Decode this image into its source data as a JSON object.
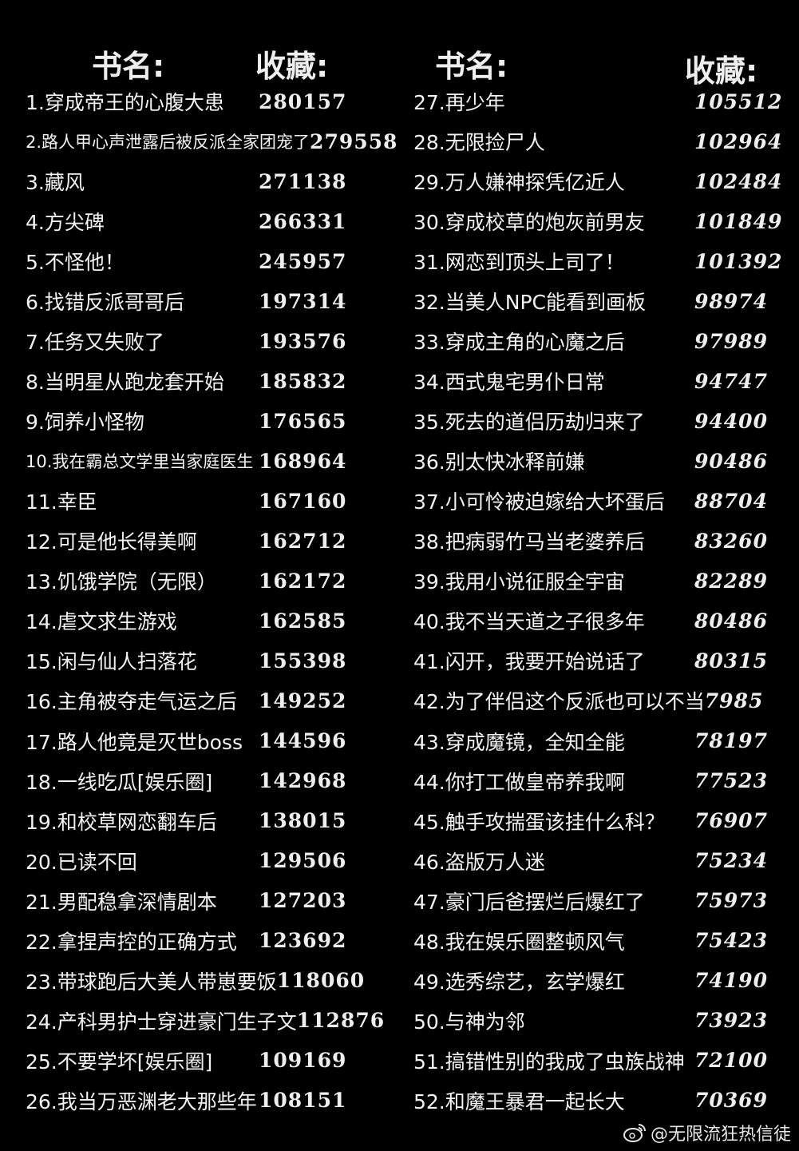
{
  "headers": {
    "left_title": "书名:",
    "left_count": "收藏:",
    "right_title": "书名:",
    "right_count": "收藏:"
  },
  "left_books": [
    {
      "title": "1.穿成帝王的心腹大患",
      "count": "280157"
    },
    {
      "title": "2.路人甲心声泄露后被反派全家团宠了",
      "count": "279558",
      "small": true
    },
    {
      "title": "3.藏风",
      "count": "271138"
    },
    {
      "title": "4.方尖碑",
      "count": "266331"
    },
    {
      "title": "5.不怪他！",
      "count": "245957"
    },
    {
      "title": "6.找错反派哥哥后",
      "count": "197314"
    },
    {
      "title": "7.任务又失败了",
      "count": "193576"
    },
    {
      "title": "8.当明星从跑龙套开始",
      "count": "185832"
    },
    {
      "title": "9.饲养小怪物",
      "count": "176565"
    },
    {
      "title": "10.我在霸总文学里当家庭医生",
      "count": "168964",
      "small": true
    },
    {
      "title": "11.幸臣",
      "count": "167160"
    },
    {
      "title": "12.可是他长得美啊",
      "count": "162712"
    },
    {
      "title": "13.饥饿学院（无限）",
      "count": "162172"
    },
    {
      "title": "14.虐文求生游戏",
      "count": "162585"
    },
    {
      "title": "15.闲与仙人扫落花",
      "count": "155398"
    },
    {
      "title": "16.主角被夺走气运之后",
      "count": "149252"
    },
    {
      "title": "17.路人他竟是灭世boss",
      "count": "144596"
    },
    {
      "title": "18.一线吃瓜[娱乐圈]",
      "count": "142968"
    },
    {
      "title": "19.和校草网恋翻车后",
      "count": "138015"
    },
    {
      "title": "20.已读不回",
      "count": "129506"
    },
    {
      "title": "21.男配稳拿深情剧本",
      "count": "127203"
    },
    {
      "title": "22.拿捏声控的正确方式",
      "count": "123692"
    },
    {
      "title": "23.带球跑后大美人带崽要饭",
      "count": "118060"
    },
    {
      "title": "24.产科男护士穿进豪门生子文",
      "count": "112876"
    },
    {
      "title": "25.不要学坏[娱乐圈]",
      "count": "109169"
    },
    {
      "title": "26.我当万恶渊老大那些年",
      "count": "108151"
    }
  ],
  "right_books": [
    {
      "title": "27.再少年",
      "count": "105512"
    },
    {
      "title": "28.无限捡尸人",
      "count": "102964"
    },
    {
      "title": "29.万人嫌神探凭亿近人",
      "count": "102484"
    },
    {
      "title": "30.穿成校草的炮灰前男友",
      "count": "101849"
    },
    {
      "title": "31.网恋到顶头上司了！",
      "count": "101392"
    },
    {
      "title": "32.当美人NPC能看到画板",
      "count": "98974"
    },
    {
      "title": "33.穿成主角的心魔之后",
      "count": "97989"
    },
    {
      "title": "34.西式鬼宅男仆日常",
      "count": "94747"
    },
    {
      "title": "35.死去的道侣历劫归来了",
      "count": "94400"
    },
    {
      "title": "36.别太快冰释前嫌",
      "count": "90486"
    },
    {
      "title": "37.小可怜被迫嫁给大坏蛋后",
      "count": "88704"
    },
    {
      "title": "38.把病弱竹马当老婆养后",
      "count": "83260"
    },
    {
      "title": "39.我用小说征服全宇宙",
      "count": "82289"
    },
    {
      "title": "40.我不当天道之子很多年",
      "count": "80486"
    },
    {
      "title": "41.闪开，我要开始说话了",
      "count": "80315"
    },
    {
      "title": "42.为了伴侣这个反派也可以不当",
      "count": "7985"
    },
    {
      "title": "43.穿成魔镜，全知全能",
      "count": "78197"
    },
    {
      "title": "44.你打工做皇帝养我啊",
      "count": "77523"
    },
    {
      "title": "45.触手攻揣蛋该挂什么科？",
      "count": "76907"
    },
    {
      "title": "46.盗版万人迷",
      "count": "75234"
    },
    {
      "title": "47.豪门后爸摆烂后爆红了",
      "count": "75973"
    },
    {
      "title": "48.我在娱乐圈整顿风气",
      "count": "75423"
    },
    {
      "title": "49.选秀综艺，玄学爆红",
      "count": "74190"
    },
    {
      "title": "50.与神为邻",
      "count": "73923"
    },
    {
      "title": "51.搞错性别的我成了虫族战神",
      "count": "72100"
    },
    {
      "title": "52.和魔王暴君一起长大",
      "count": "70369"
    }
  ],
  "watermark": {
    "icon": "weibo-icon",
    "text": "@无限流狂热信徒"
  }
}
